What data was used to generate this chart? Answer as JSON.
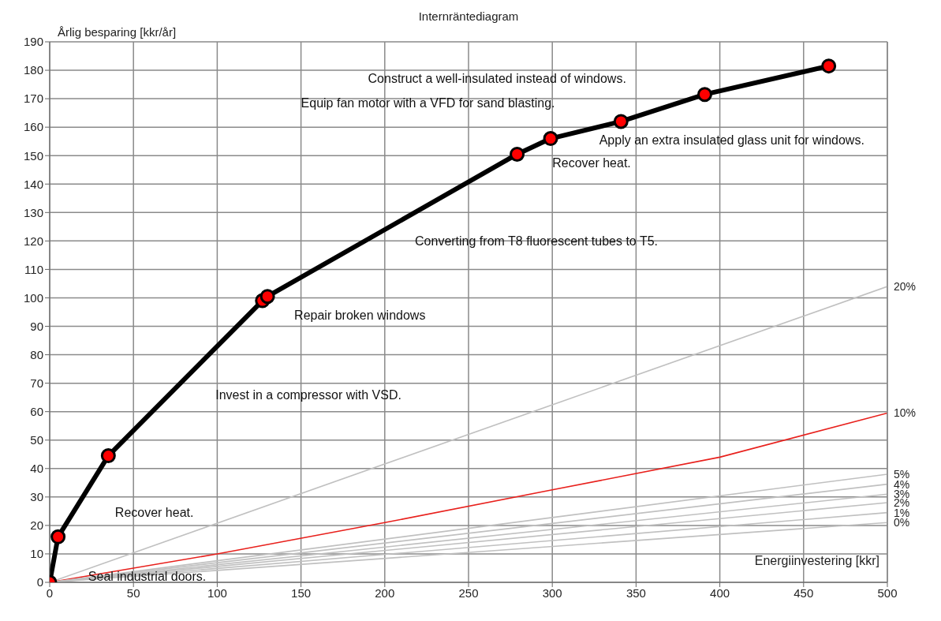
{
  "chart_data": {
    "type": "line",
    "title": "Internräntediagram",
    "ylabel": "Årlig besparing [kkr/år]",
    "xlabel": "Energiinvestering [kkr]",
    "series": [
      {
        "color": "#000000",
        "colors": [
          "#ff0000",
          "#ff0000",
          "#ff0000",
          "#ff0000",
          "#ff0000",
          "#ff0000",
          "#ff0000",
          "#ff0000",
          "#ff0000",
          "#ff0000"
        ],
        "marker": "circle",
        "x": [
          0,
          5,
          35,
          127,
          130,
          279,
          299,
          341,
          391,
          465
        ],
        "values": [
          0,
          16,
          44.5,
          99,
          100.5,
          150.5,
          156,
          162,
          171.5,
          181.5
        ]
      },
      {
        "name": "20%",
        "color": "#c0c0c0",
        "marker": "none",
        "x": [
          0,
          500
        ],
        "values": [
          0,
          104
        ]
      },
      {
        "name": "10%",
        "color": "#e8201c",
        "marker": "none",
        "x": [
          0,
          100,
          200,
          300,
          400,
          500
        ],
        "values": [
          0,
          10,
          21,
          32.5,
          44,
          59.5
        ]
      },
      {
        "name": "5%",
        "color": "#c0c0c0",
        "marker": "none",
        "x": [
          0,
          500
        ],
        "values": [
          0,
          38
        ]
      },
      {
        "name": "4%",
        "color": "#c0c0c0",
        "marker": "none",
        "x": [
          0,
          500
        ],
        "values": [
          0,
          34.5
        ]
      },
      {
        "name": "3%",
        "color": "#c0c0c0",
        "marker": "none",
        "x": [
          0,
          500
        ],
        "values": [
          0,
          31
        ]
      },
      {
        "name": "2%",
        "color": "#c0c0c0",
        "marker": "none",
        "x": [
          0,
          500
        ],
        "values": [
          0,
          28
        ]
      },
      {
        "name": "1%",
        "color": "#c0c0c0",
        "marker": "none",
        "x": [
          0,
          500
        ],
        "values": [
          0,
          24.5
        ]
      },
      {
        "name": "0%",
        "color": "#c0c0c0",
        "marker": "none",
        "x": [
          0,
          500
        ],
        "values": [
          0,
          21
        ]
      }
    ],
    "annotations": [
      "Construct a well-insulated instead of windows.",
      "Equip fan motor with a VFD for sand blasting.",
      "Apply an extra insulated glass unit for windows.",
      "Recover heat.",
      "Converting from T8 fluorescent tubes to T5.",
      "Repair broken windows",
      "Invest in a compressor with VSD.",
      "Recover heat.",
      "Seal industrial doors."
    ],
    "xlim": [
      0,
      500
    ],
    "xticks": [
      0,
      50,
      100,
      150,
      200,
      250,
      300,
      350,
      400,
      450,
      500
    ],
    "ylim": [
      0,
      190
    ],
    "yticks": [
      0,
      10,
      20,
      30,
      40,
      50,
      60,
      70,
      80,
      90,
      100,
      110,
      120,
      130,
      140,
      150,
      160,
      170,
      180,
      190
    ],
    "grid": true,
    "legend": false,
    "line_style": "solid"
  }
}
